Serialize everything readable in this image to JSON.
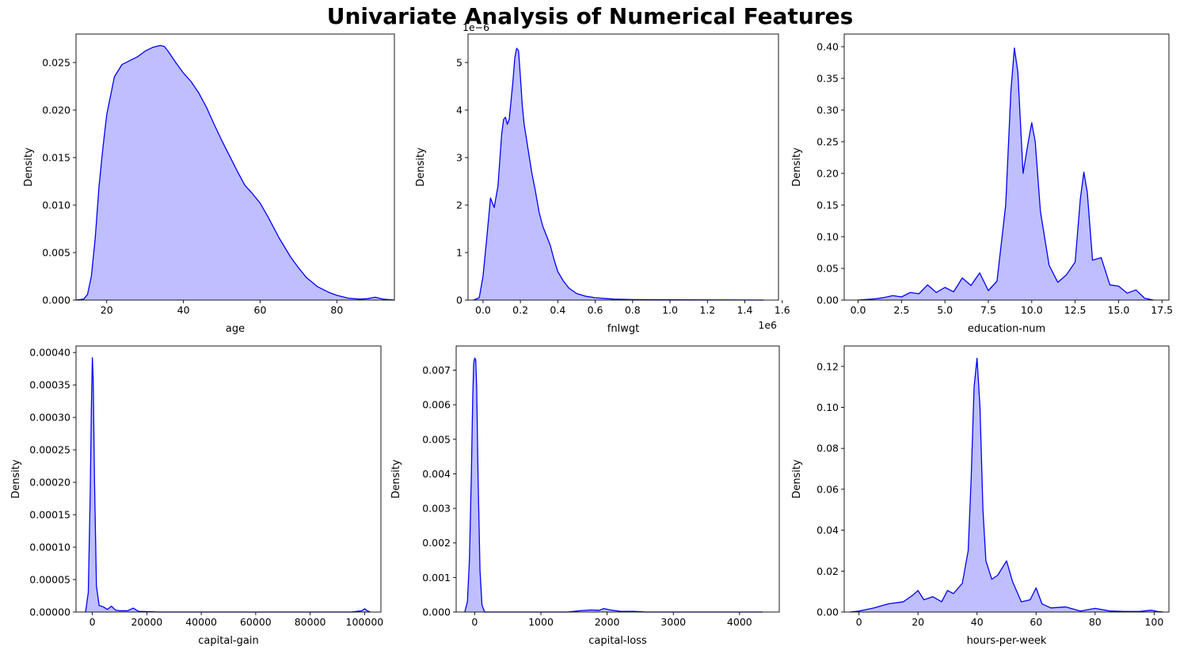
{
  "title": "Univariate Analysis of Numerical Features",
  "colors": {
    "line": "#0000ff",
    "fill": "#bfbfff"
  },
  "chart_data": [
    {
      "type": "area",
      "xlabel": "age",
      "ylabel": "Density",
      "xlim": [
        12,
        95
      ],
      "ylim": [
        0,
        0.028
      ],
      "xticks": [
        20,
        40,
        60,
        80
      ],
      "xtick_labels": [
        "20",
        "40",
        "60",
        "80"
      ],
      "yticks": [
        0,
        0.005,
        0.01,
        0.015,
        0.02,
        0.025
      ],
      "ytick_labels": [
        "0.000",
        "0.005",
        "0.010",
        "0.015",
        "0.020",
        "0.025"
      ],
      "offset_label": "",
      "series": [
        {
          "x": [
            12,
            14,
            15,
            16,
            17,
            18,
            19,
            20,
            22,
            24,
            26,
            28,
            30,
            32,
            34,
            35,
            36,
            38,
            40,
            42,
            44,
            46,
            48,
            50,
            52,
            54,
            56,
            58,
            60,
            62,
            65,
            68,
            70,
            72,
            75,
            78,
            80,
            83,
            86,
            88,
            90,
            92,
            95
          ],
          "y": [
            0.0,
            0.0001,
            0.0006,
            0.0025,
            0.0065,
            0.012,
            0.016,
            0.0195,
            0.0235,
            0.0248,
            0.0252,
            0.0256,
            0.0262,
            0.0266,
            0.0268,
            0.0267,
            0.0262,
            0.025,
            0.0239,
            0.023,
            0.0218,
            0.0203,
            0.0185,
            0.0168,
            0.0152,
            0.0136,
            0.0121,
            0.0112,
            0.0102,
            0.0088,
            0.0065,
            0.0045,
            0.0034,
            0.0024,
            0.0014,
            0.0008,
            0.0005,
            0.0002,
            0.0001,
            0.00015,
            0.0003,
            0.0001,
            0.0
          ]
        }
      ]
    },
    {
      "type": "area",
      "xlabel": "fnlwgt",
      "ylabel": "Density",
      "xlim": [
        -0.08,
        1.58
      ],
      "ylim": [
        0,
        5.6
      ],
      "xticks": [
        0,
        0.2,
        0.4,
        0.6,
        0.8,
        1.0,
        1.2,
        1.4,
        1.6
      ],
      "xtick_labels": [
        "0.0",
        "0.2",
        "0.4",
        "0.6",
        "0.8",
        "1.0",
        "1.2",
        "1.4",
        "1.6"
      ],
      "yticks": [
        0,
        1,
        2,
        3,
        4,
        5
      ],
      "ytick_labels": [
        "0",
        "1",
        "2",
        "3",
        "4",
        "5"
      ],
      "offset_label": "1e−6",
      "x_offset_label": "1e6",
      "series": [
        {
          "x": [
            -0.05,
            -0.02,
            0,
            0.02,
            0.04,
            0.06,
            0.08,
            0.1,
            0.11,
            0.12,
            0.13,
            0.14,
            0.16,
            0.17,
            0.18,
            0.19,
            0.2,
            0.21,
            0.22,
            0.24,
            0.26,
            0.28,
            0.3,
            0.32,
            0.34,
            0.36,
            0.38,
            0.4,
            0.43,
            0.46,
            0.5,
            0.55,
            0.6,
            0.7,
            0.8,
            1.0,
            1.2,
            1.4,
            1.5
          ],
          "y": [
            0.0,
            0.05,
            0.5,
            1.3,
            2.15,
            1.95,
            2.4,
            3.5,
            3.8,
            3.85,
            3.7,
            3.8,
            4.6,
            5.1,
            5.3,
            5.25,
            4.7,
            4.1,
            3.7,
            3.2,
            2.7,
            2.3,
            1.85,
            1.55,
            1.35,
            1.15,
            0.85,
            0.6,
            0.4,
            0.25,
            0.14,
            0.08,
            0.05,
            0.02,
            0.01,
            0.005,
            0.003,
            0.002,
            0.0
          ]
        }
      ]
    },
    {
      "type": "area",
      "xlabel": "education-num",
      "ylabel": "Density",
      "xlim": [
        -0.8,
        17.9
      ],
      "ylim": [
        0,
        0.42
      ],
      "xticks": [
        0,
        2.5,
        5,
        7.5,
        10,
        12.5,
        15,
        17.5
      ],
      "xtick_labels": [
        "0.0",
        "2.5",
        "5.0",
        "7.5",
        "10.0",
        "12.5",
        "15.0",
        "17.5"
      ],
      "yticks": [
        0,
        0.05,
        0.1,
        0.15,
        0.2,
        0.25,
        0.3,
        0.35,
        0.4
      ],
      "ytick_labels": [
        "0.00",
        "0.05",
        "0.10",
        "0.15",
        "0.20",
        "0.25",
        "0.30",
        "0.35",
        "0.40"
      ],
      "offset_label": "",
      "series": [
        {
          "x": [
            0,
            1,
            1.5,
            2,
            2.5,
            3,
            3.5,
            4,
            4.5,
            5,
            5.5,
            6,
            6.5,
            7,
            7.5,
            8,
            8.5,
            8.8,
            9,
            9.2,
            9.5,
            9.8,
            10,
            10.2,
            10.5,
            11,
            11.5,
            12,
            12.5,
            12.8,
            13,
            13.2,
            13.5,
            14,
            14.5,
            15,
            15.5,
            16,
            16.5,
            17
          ],
          "y": [
            0.0,
            0.002,
            0.004,
            0.007,
            0.005,
            0.012,
            0.01,
            0.024,
            0.012,
            0.02,
            0.013,
            0.035,
            0.023,
            0.043,
            0.015,
            0.03,
            0.15,
            0.33,
            0.398,
            0.36,
            0.2,
            0.25,
            0.28,
            0.25,
            0.14,
            0.055,
            0.028,
            0.04,
            0.06,
            0.16,
            0.202,
            0.17,
            0.063,
            0.067,
            0.024,
            0.022,
            0.011,
            0.016,
            0.003,
            0.0
          ]
        }
      ]
    },
    {
      "type": "area",
      "xlabel": "capital-gain",
      "ylabel": "Density",
      "xlim": [
        -6000,
        106000
      ],
      "ylim": [
        0,
        0.00041
      ],
      "xticks": [
        0,
        20000,
        40000,
        60000,
        80000,
        100000
      ],
      "xtick_labels": [
        "0",
        "20000",
        "40000",
        "60000",
        "80000",
        "100000"
      ],
      "yticks": [
        0,
        5e-05,
        0.0001,
        0.00015,
        0.0002,
        0.00025,
        0.0003,
        0.00035,
        0.0004
      ],
      "ytick_labels": [
        "0.00000",
        "0.00005",
        "0.00010",
        "0.00015",
        "0.00020",
        "0.00025",
        "0.00030",
        "0.00035",
        "0.00040"
      ],
      "offset_label": "",
      "series": [
        {
          "x": [
            -2500,
            -1500,
            -800,
            -300,
            0,
            300,
            800,
            1500,
            2500,
            4000,
            5500,
            7000,
            8500,
            10000,
            13000,
            15000,
            17000,
            25000,
            50000,
            95000,
            99000,
            100000,
            101000,
            102000
          ],
          "y": [
            0.0,
            3e-05,
            0.00018,
            0.00033,
            0.000392,
            0.00036,
            0.0002,
            4e-05,
            1e-05,
            8e-06,
            4e-06,
            9e-06,
            3e-06,
            2e-06,
            2e-06,
            6e-06,
            1e-06,
            0.0,
            0.0,
            0.0,
            2e-06,
            5e-06,
            2e-06,
            0.0
          ]
        }
      ]
    },
    {
      "type": "area",
      "xlabel": "capital-loss",
      "ylabel": "Density",
      "xlim": [
        -280,
        4600
      ],
      "ylim": [
        0,
        0.0077
      ],
      "xticks": [
        0,
        1000,
        2000,
        3000,
        4000
      ],
      "xtick_labels": [
        "0",
        "1000",
        "2000",
        "3000",
        "4000"
      ],
      "yticks": [
        0,
        0.001,
        0.002,
        0.003,
        0.004,
        0.005,
        0.006,
        0.007
      ],
      "ytick_labels": [
        "0.000",
        "0.001",
        "0.002",
        "0.003",
        "0.004",
        "0.005",
        "0.006",
        "0.007"
      ],
      "offset_label": "",
      "series": [
        {
          "x": [
            -150,
            -110,
            -80,
            -50,
            -30,
            -15,
            0,
            15,
            30,
            50,
            80,
            110,
            150,
            300,
            1400,
            1600,
            1750,
            1880,
            1950,
            2050,
            2200,
            2400,
            2600,
            3000,
            3800,
            4350
          ],
          "y": [
            0.0,
            0.0003,
            0.0015,
            0.004,
            0.0062,
            0.0072,
            0.00735,
            0.0073,
            0.0065,
            0.004,
            0.0012,
            0.0002,
            0.0,
            0.0,
            0.0,
            4e-05,
            6e-05,
            5e-05,
            0.0001,
            6e-05,
            2e-05,
            2e-05,
            0.0,
            0.0,
            0.0,
            0.0
          ]
        }
      ]
    },
    {
      "type": "area",
      "xlabel": "hours-per-week",
      "ylabel": "Density",
      "xlim": [
        -5,
        105
      ],
      "ylim": [
        0,
        0.13
      ],
      "xticks": [
        0,
        20,
        40,
        60,
        80,
        100
      ],
      "xtick_labels": [
        "0",
        "20",
        "40",
        "60",
        "80",
        "100"
      ],
      "yticks": [
        0,
        0.02,
        0.04,
        0.06,
        0.08,
        0.1,
        0.12
      ],
      "ytick_labels": [
        "0.00",
        "0.02",
        "0.04",
        "0.06",
        "0.08",
        "0.10",
        "0.12"
      ],
      "offset_label": "",
      "series": [
        {
          "x": [
            -3,
            0,
            5,
            10,
            15,
            18,
            20,
            22,
            25,
            28,
            30,
            32,
            35,
            37,
            38,
            39,
            40,
            41,
            42,
            43,
            45,
            47,
            50,
            52,
            55,
            58,
            60,
            62,
            65,
            70,
            75,
            80,
            85,
            90,
            95,
            99,
            101,
            103
          ],
          "y": [
            0.0,
            0.0005,
            0.002,
            0.004,
            0.005,
            0.008,
            0.0105,
            0.006,
            0.0075,
            0.005,
            0.0105,
            0.009,
            0.014,
            0.03,
            0.065,
            0.11,
            0.124,
            0.1,
            0.05,
            0.025,
            0.016,
            0.018,
            0.025,
            0.015,
            0.005,
            0.006,
            0.0118,
            0.004,
            0.002,
            0.0025,
            0.0005,
            0.0018,
            0.0005,
            0.0003,
            0.0003,
            0.0009,
            0.0003,
            0.0
          ]
        }
      ]
    }
  ]
}
